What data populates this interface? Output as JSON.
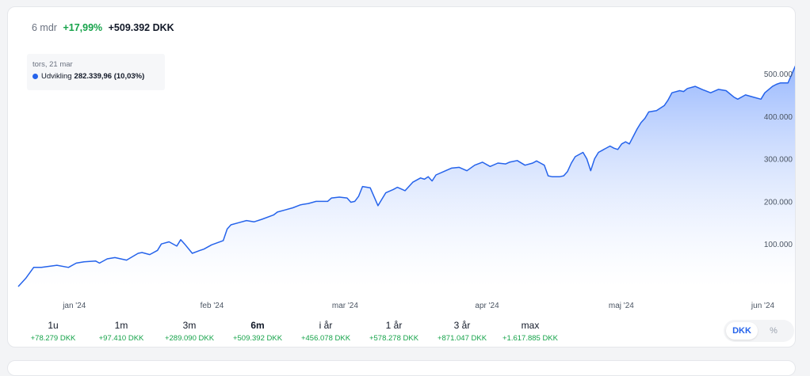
{
  "summary": {
    "period": "6 mdr",
    "change_pct": "+17,99%",
    "change_abs": "+509.392 DKK"
  },
  "tooltip": {
    "date": "tors, 21 mar",
    "series_label": "Udvikling",
    "value": "282.339,96 (10,03%)"
  },
  "colors": {
    "line": "#2563eb",
    "positive": "#16a34a",
    "area_top": "#93b4fd"
  },
  "chart_data": {
    "type": "area",
    "ylim": [
      0,
      520000
    ],
    "y_ticks": [
      100000,
      200000,
      300000,
      400000,
      500000
    ],
    "y_tick_labels": [
      "100.000",
      "200.000",
      "300.000",
      "400.000",
      "500.000"
    ],
    "x_tick_labels": [
      "jan '24",
      "feb '24",
      "mar '24",
      "apr '24",
      "maj '24",
      "jun '24"
    ],
    "x_tick_positions": [
      14.5,
      50.1,
      84.5,
      121.2,
      155.9,
      192.5
    ],
    "x_range": [
      0,
      201
    ],
    "series": [
      {
        "x": [
          0,
          2,
          4,
          6,
          10,
          13,
          15,
          17,
          20,
          21,
          23,
          25,
          28,
          31,
          32,
          34,
          36,
          37,
          39,
          41,
          42,
          43,
          45,
          47,
          48,
          50,
          53,
          54,
          55,
          57,
          59,
          61,
          63,
          66,
          67,
          69,
          71,
          73,
          75,
          77,
          79,
          80,
          81,
          83,
          85,
          86,
          87,
          88,
          89,
          91,
          93,
          95,
          97,
          98,
          100,
          102,
          104,
          105,
          106,
          107,
          108,
          110,
          112,
          114,
          116,
          118,
          120,
          122,
          124,
          126,
          127,
          129,
          131,
          133,
          134,
          135,
          136,
          137,
          138,
          140,
          141,
          142,
          143,
          144,
          146,
          147,
          148,
          149,
          150,
          151,
          153,
          154,
          155,
          156,
          157,
          158,
          160,
          161,
          162,
          163,
          165,
          167,
          168,
          169,
          171,
          172,
          173,
          175,
          177,
          179,
          181,
          183,
          185,
          186,
          188,
          190,
          192,
          193,
          195,
          196,
          197,
          199,
          201
        ],
        "values": [
          0,
          20000,
          45000,
          45000,
          50000,
          45000,
          55000,
          58000,
          60000,
          55000,
          65000,
          68000,
          62000,
          78000,
          80000,
          75000,
          85000,
          100000,
          105000,
          95000,
          110000,
          100000,
          78000,
          85000,
          88000,
          98000,
          108000,
          135000,
          145000,
          150000,
          155000,
          152000,
          158000,
          168000,
          175000,
          180000,
          185000,
          192000,
          195000,
          200000,
          200000,
          200000,
          208000,
          210000,
          208000,
          198000,
          200000,
          212000,
          235000,
          232000,
          190000,
          220000,
          228000,
          233000,
          225000,
          245000,
          255000,
          252000,
          258000,
          248000,
          262000,
          270000,
          278000,
          280000,
          272000,
          285000,
          292000,
          282000,
          290000,
          288000,
          292000,
          296000,
          285000,
          290000,
          295000,
          290000,
          285000,
          260000,
          258000,
          258000,
          260000,
          270000,
          290000,
          305000,
          315000,
          300000,
          272000,
          300000,
          315000,
          320000,
          330000,
          325000,
          322000,
          335000,
          340000,
          335000,
          370000,
          385000,
          395000,
          410000,
          413000,
          425000,
          438000,
          455000,
          460000,
          458000,
          465000,
          470000,
          462000,
          455000,
          463000,
          460000,
          445000,
          440000,
          450000,
          445000,
          440000,
          455000,
          470000,
          475000,
          478000,
          478000,
          520000
        ]
      }
    ]
  },
  "periods": [
    {
      "label": "1u",
      "change": "+78.279 DKK"
    },
    {
      "label": "1m",
      "change": "+97.410 DKK"
    },
    {
      "label": "3m",
      "change": "+289.090 DKK"
    },
    {
      "label": "6m",
      "change": "+509.392 DKK",
      "active": true
    },
    {
      "label": "i år",
      "change": "+456.078 DKK"
    },
    {
      "label": "1 år",
      "change": "+578.278 DKK"
    },
    {
      "label": "3 år",
      "change": "+871.047 DKK"
    },
    {
      "label": "max",
      "change": "+1.617.885 DKK"
    }
  ],
  "currency_toggle": {
    "selected": "DKK",
    "other": "%"
  }
}
